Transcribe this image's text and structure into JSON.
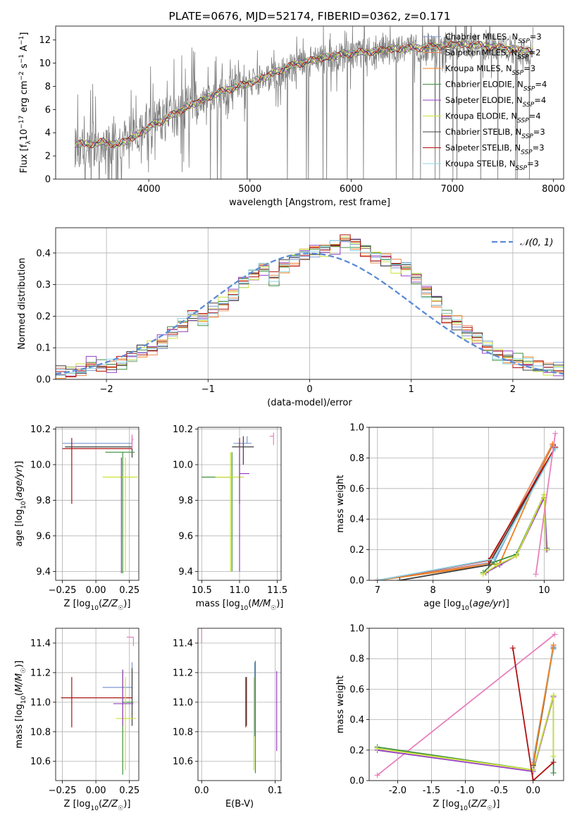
{
  "chart_data": [
    {
      "id": "spectrum",
      "type": "line",
      "title": "PLATE=0676, MJD=52174, FIBERID=0362, z=0.171",
      "xlabel": "wavelength [Angstrom, rest frame]",
      "ylabel": "Flux [f_λ 10^-17 erg cm^-2 s^-1 A^-1]",
      "xlim": [
        3080,
        8100
      ],
      "ylim": [
        0,
        13.2
      ],
      "xticks": [
        4000,
        5000,
        6000,
        7000,
        8000
      ],
      "yticks": [
        0,
        2,
        4,
        6,
        8,
        10,
        12
      ],
      "grid": false,
      "legend": "top-right",
      "data_x": [
        3270,
        3400,
        3550,
        3700,
        3850,
        3950,
        4100,
        4250,
        4400,
        4550,
        4700,
        4850,
        5000,
        5150,
        5300,
        5450,
        5600,
        5750,
        5900,
        6050,
        6200,
        6400,
        6600,
        6800,
        7000,
        7200,
        7400,
        7600,
        7800
      ],
      "data_y": [
        3.0,
        2.9,
        3.3,
        3.0,
        3.7,
        4.5,
        5.0,
        5.5,
        6.2,
        6.8,
        7.4,
        7.9,
        8.3,
        8.7,
        9.2,
        9.7,
        10.1,
        10.4,
        10.6,
        10.8,
        11.0,
        11.1,
        11.3,
        11.4,
        11.5,
        11.6,
        11.5,
        11.2,
        11.0
      ],
      "model_y": [
        3.1,
        3.0,
        3.2,
        3.0,
        3.6,
        4.2,
        4.9,
        5.6,
        6.3,
        6.9,
        7.5,
        7.9,
        8.3,
        8.8,
        9.4,
        9.9,
        10.2,
        10.5,
        10.7,
        10.9,
        11.0,
        11.2,
        11.3,
        11.4,
        11.6,
        11.6,
        11.4,
        11.2,
        11.0
      ],
      "legend_entries": [
        {
          "label": "Chabrier MILES, N",
          "sub": "SSP",
          "suffix": "=3",
          "color": "#7b97d2"
        },
        {
          "label": "Salpeter MILES, N",
          "sub": "SSP",
          "suffix": "=2",
          "color": "#e8895a"
        },
        {
          "label": "Kroupa MILES, N",
          "sub": "SSP",
          "suffix": "=3",
          "color": "#ef7e1e"
        },
        {
          "label": "Chabrier ELODIE, N",
          "sub": "SSP",
          "suffix": "=4",
          "color": "#3f8f3f"
        },
        {
          "label": "Salpeter ELODIE, N",
          "sub": "SSP",
          "suffix": "=4",
          "color": "#9640c2"
        },
        {
          "label": "Kroupa ELODIE, N",
          "sub": "SSP",
          "suffix": "=4",
          "color": "#cbe13a"
        },
        {
          "label": "Chabrier STELIB, N",
          "sub": "SSP",
          "suffix": "=3",
          "color": "#404040"
        },
        {
          "label": "Salpeter STELIB, N",
          "sub": "SSP",
          "suffix": "=3",
          "color": "#b01010"
        },
        {
          "label": "Kroupa STELIB, N",
          "sub": "SSP",
          "suffix": "=3",
          "color": "#8fd3e6"
        }
      ]
    },
    {
      "id": "residuals",
      "type": "line",
      "xlabel": "(data-model)/error",
      "ylabel": "Normed distribution",
      "xlim": [
        -2.5,
        2.5
      ],
      "ylim": [
        0,
        0.48
      ],
      "xticks": [
        -2,
        -1,
        0,
        1,
        2
      ],
      "yticks": [
        0.0,
        0.1,
        0.2,
        0.3,
        0.4
      ],
      "grid": true,
      "legend": "top-right",
      "normal_label": "𝒩(0, 1)",
      "normal_color": "#5b8bd6",
      "bin_edges_start": -2.5,
      "bin_width": 0.1,
      "hist_mean": [
        0.02,
        0.02,
        0.03,
        0.05,
        0.04,
        0.04,
        0.05,
        0.07,
        0.09,
        0.1,
        0.12,
        0.15,
        0.17,
        0.2,
        0.19,
        0.22,
        0.24,
        0.27,
        0.31,
        0.33,
        0.35,
        0.32,
        0.36,
        0.38,
        0.4,
        0.41,
        0.41,
        0.42,
        0.44,
        0.43,
        0.41,
        0.39,
        0.38,
        0.36,
        0.35,
        0.32,
        0.28,
        0.25,
        0.2,
        0.18,
        0.15,
        0.13,
        0.1,
        0.08,
        0.07,
        0.06,
        0.05,
        0.04,
        0.03,
        0.03
      ]
    },
    {
      "id": "age-vs-Z",
      "type": "scatter",
      "xlabel": "Z [log10(Z/Z☉)]",
      "ylabel": "age [log10(age/yr)]",
      "xlim": [
        -0.3,
        0.32
      ],
      "ylim": [
        9.35,
        10.21
      ],
      "xticks": [
        -0.25,
        0.0,
        0.25
      ],
      "yticks": [
        9.4,
        9.6,
        9.8,
        10.0,
        10.2
      ],
      "grid": true,
      "points": [
        {
          "x": 0.27,
          "y": 10.12,
          "xerr": [
            0.52,
            0.0
          ],
          "yerr": [
            0.0,
            0.03
          ],
          "color": "#7b97d2"
        },
        {
          "x": 0.27,
          "y": 10.1,
          "xerr": [
            0.5,
            0.0
          ],
          "yerr": [
            0.06,
            0.06
          ],
          "color": "#404040"
        },
        {
          "x": -0.18,
          "y": 10.09,
          "xerr": [
            0.07,
            0.45
          ],
          "yerr": [
            0.31,
            0.06
          ],
          "color": "#b01010"
        },
        {
          "x": 0.27,
          "y": 10.14,
          "xerr": [
            0.0,
            0.01
          ],
          "yerr": [
            0.05,
            0.03
          ],
          "color": "#e87fbd"
        },
        {
          "x": 0.2,
          "y": 10.07,
          "xerr": [
            0.13,
            0.09
          ],
          "yerr": [
            0.68,
            0.0
          ],
          "color": "#3f8f3f"
        },
        {
          "x": 0.22,
          "y": 9.93,
          "xerr": [
            0.17,
            0.09
          ],
          "yerr": [
            0.53,
            0.11
          ],
          "color": "#cbe13a"
        },
        {
          "x": 0.19,
          "y": 10.0,
          "xerr": [
            0.0,
            0.0
          ],
          "yerr": [
            0.61,
            0.04
          ],
          "color": "#9640c2"
        }
      ]
    },
    {
      "id": "age-vs-mass",
      "type": "scatter",
      "xlabel": "mass [log10(M/M☉)]",
      "xlim": [
        10.45,
        11.55
      ],
      "ylim": [
        9.35,
        10.21
      ],
      "xticks": [
        10.5,
        11.0,
        11.5
      ],
      "yticks": [
        9.4,
        9.6,
        9.8,
        10.0,
        10.2
      ],
      "grid": true,
      "points": [
        {
          "x": 11.1,
          "y": 10.12,
          "xerr": [
            0.18,
            0.06
          ],
          "yerr": [
            0.0,
            0.04
          ],
          "color": "#7b97d2"
        },
        {
          "x": 11.05,
          "y": 10.1,
          "xerr": [
            0.15,
            0.14
          ],
          "yerr": [
            0.1,
            0.06
          ],
          "color": "#404040"
        },
        {
          "x": 11.0,
          "y": 10.09,
          "xerr": [
            0.0,
            0.0
          ],
          "yerr": [
            0.31,
            0.06
          ],
          "color": "#b01010"
        },
        {
          "x": 11.45,
          "y": 10.16,
          "xerr": [
            0.05,
            0.0
          ],
          "yerr": [
            0.05,
            0.02
          ],
          "color": "#e87fbd"
        },
        {
          "x": 10.9,
          "y": 9.93,
          "xerr": [
            0.4,
            0.02
          ],
          "yerr": [
            0.53,
            0.14
          ],
          "color": "#3f8f3f"
        },
        {
          "x": 10.88,
          "y": 9.93,
          "xerr": [
            0.2,
            0.18
          ],
          "yerr": [
            0.53,
            0.14
          ],
          "color": "#cbe13a"
        },
        {
          "x": 11.0,
          "y": 9.95,
          "xerr": [
            0.0,
            0.13
          ],
          "yerr": [
            0.55,
            0.15
          ],
          "color": "#9640c2"
        }
      ]
    },
    {
      "id": "weight-vs-age",
      "type": "line",
      "xlabel": "age [log10(age/yr)]",
      "ylabel": "mass weight",
      "xlim": [
        6.85,
        10.35
      ],
      "ylim": [
        0.0,
        1.0
      ],
      "xticks": [
        7,
        8,
        9,
        10
      ],
      "yticks": [
        0.0,
        0.2,
        0.4,
        0.6,
        0.8,
        1.0
      ],
      "grid": true,
      "series": [
        {
          "color": "#7b97d2",
          "x": [
            7.0,
            9.1,
            10.15
          ],
          "y": [
            0.0,
            0.12,
            0.88
          ]
        },
        {
          "color": "#e8895a",
          "x": [
            7.0,
            9.0,
            10.15
          ],
          "y": [
            0.0,
            0.11,
            0.89
          ]
        },
        {
          "color": "#ef7e1e",
          "x": [
            7.0,
            9.2,
            10.15
          ],
          "y": [
            0.0,
            0.11,
            0.89
          ]
        },
        {
          "color": "#3f8f3f",
          "x": [
            8.9,
            9.1,
            9.5,
            10.0,
            10.05
          ],
          "y": [
            0.05,
            0.12,
            0.17,
            0.56,
            0.21
          ]
        },
        {
          "color": "#9640c2",
          "x": [
            8.95,
            9.2,
            9.5,
            10.0,
            10.05
          ],
          "y": [
            0.05,
            0.1,
            0.16,
            0.54,
            0.2
          ]
        },
        {
          "color": "#cbe13a",
          "x": [
            8.9,
            9.15,
            9.5,
            10.0,
            10.03
          ],
          "y": [
            0.04,
            0.1,
            0.16,
            0.56,
            0.2
          ]
        },
        {
          "color": "#404040",
          "x": [
            7.4,
            9.0,
            10.2
          ],
          "y": [
            0.0,
            0.1,
            0.87
          ]
        },
        {
          "color": "#b01010",
          "x": [
            7.0,
            9.0,
            10.2
          ],
          "y": [
            0.0,
            0.13,
            0.87
          ]
        },
        {
          "color": "#8fd3e6",
          "x": [
            7.0,
            9.1,
            10.2
          ],
          "y": [
            0.0,
            0.14,
            0.86
          ]
        },
        {
          "color": "#e87fbd",
          "x": [
            9.85,
            10.2
          ],
          "y": [
            0.04,
            0.96
          ]
        }
      ]
    },
    {
      "id": "mass-vs-Z",
      "type": "scatter",
      "xlabel": "Z [log10(Z/Z☉)]",
      "ylabel": "mass [log10(M/M☉)]",
      "xlim": [
        -0.3,
        0.32
      ],
      "ylim": [
        10.47,
        11.5
      ],
      "xticks": [
        -0.25,
        0.0,
        0.25
      ],
      "yticks": [
        10.6,
        10.8,
        11.0,
        11.2,
        11.4
      ],
      "grid": true,
      "points": [
        {
          "x": 0.27,
          "y": 11.1,
          "xerr": [
            0.22,
            0.0
          ],
          "yerr": [
            0.08,
            0.17
          ],
          "color": "#7b97d2"
        },
        {
          "x": 0.27,
          "y": 11.03,
          "xerr": [
            0.52,
            0.0
          ],
          "yerr": [
            0.19,
            0.2
          ],
          "color": "#404040"
        },
        {
          "x": -0.18,
          "y": 11.03,
          "xerr": [
            0.08,
            0.45
          ],
          "yerr": [
            0.2,
            0.14
          ],
          "color": "#b01010"
        },
        {
          "x": 0.28,
          "y": 11.44,
          "xerr": [
            0.05,
            0.0
          ],
          "yerr": [
            0.06,
            0.0
          ],
          "color": "#e87fbd"
        },
        {
          "x": 0.2,
          "y": 11.0,
          "xerr": [
            0.0,
            0.08
          ],
          "yerr": [
            0.49,
            0.22
          ],
          "color": "#3f8f3f"
        },
        {
          "x": 0.22,
          "y": 10.89,
          "xerr": [
            0.07,
            0.08
          ],
          "yerr": [
            0.35,
            0.28
          ],
          "color": "#cbe13a"
        },
        {
          "x": 0.2,
          "y": 10.99,
          "xerr": [
            0.07,
            0.08
          ],
          "yerr": [
            0.15,
            0.23
          ],
          "color": "#9640c2"
        }
      ]
    },
    {
      "id": "mass-vs-ebv",
      "type": "scatter",
      "xlabel": "E(B-V)",
      "xlim": [
        -0.005,
        0.108
      ],
      "ylim": [
        10.47,
        11.5
      ],
      "xticks": [
        0.0,
        0.1
      ],
      "yticks": [
        10.6,
        10.8,
        11.0,
        11.2,
        11.4
      ],
      "grid": true,
      "points": [
        {
          "x": 0.072,
          "y": 11.1,
          "yerr": [
            0.33,
            0.17
          ],
          "color": "#7b97d2"
        },
        {
          "x": 0.061,
          "y": 11.03,
          "yerr": [
            0.19,
            0.14
          ],
          "color": "#404040"
        },
        {
          "x": 0.06,
          "y": 11.0,
          "yerr": [
            0.17,
            0.17
          ],
          "color": "#b01010"
        },
        {
          "x": 0.0,
          "y": 11.44,
          "yerr": [
            0.04,
            0.06
          ],
          "color": "#e87fbd"
        },
        {
          "x": 0.073,
          "y": 11.0,
          "yerr": [
            0.48,
            0.28
          ],
          "color": "#3f8f3f"
        },
        {
          "x": 0.071,
          "y": 10.89,
          "yerr": [
            0.35,
            0.28
          ],
          "color": "#cbe13a"
        },
        {
          "x": 0.102,
          "y": 10.99,
          "yerr": [
            0.32,
            0.22
          ],
          "color": "#9640c2"
        }
      ]
    },
    {
      "id": "weight-vs-Z",
      "type": "line",
      "xlabel": "Z [log10(Z/Z☉)]",
      "ylabel": "mass weight",
      "xlim": [
        -2.42,
        0.45
      ],
      "ylim": [
        0.0,
        1.0
      ],
      "xticks": [
        -2.0,
        -1.5,
        -1.0,
        -0.5,
        0.0
      ],
      "yticks": [
        0.0,
        0.2,
        0.4,
        0.6,
        0.8,
        1.0
      ],
      "grid": true,
      "series": [
        {
          "color": "#e87fbd",
          "x": [
            -2.3,
            0.32
          ],
          "y": [
            0.035,
            0.96
          ]
        },
        {
          "color": "#3f8f3f",
          "x": [
            -2.3,
            0.0,
            0.3,
            0.3
          ],
          "y": [
            0.22,
            0.07,
            0.56,
            0.05
          ]
        },
        {
          "color": "#9640c2",
          "x": [
            -2.3,
            0.0,
            0.3
          ],
          "y": [
            0.2,
            0.06,
            0.55
          ]
        },
        {
          "color": "#cbe13a",
          "x": [
            -2.3,
            0.0,
            0.3,
            0.3
          ],
          "y": [
            0.21,
            0.07,
            0.56,
            0.16
          ]
        },
        {
          "color": "#b01010",
          "x": [
            -0.3,
            0.0,
            0.3
          ],
          "y": [
            0.87,
            0.0,
            0.12
          ]
        },
        {
          "color": "#7b97d2",
          "x": [
            0.0,
            0.3
          ],
          "y": [
            0.12,
            0.88
          ]
        },
        {
          "color": "#404040",
          "x": [
            0.0,
            0.3
          ],
          "y": [
            0.1,
            0.87
          ]
        },
        {
          "color": "#8fd3e6",
          "x": [
            0.0,
            0.3
          ],
          "y": [
            0.14,
            0.86
          ]
        },
        {
          "color": "#ef7e1e",
          "x": [
            0.0,
            0.3
          ],
          "y": [
            0.11,
            0.89
          ]
        }
      ]
    }
  ]
}
